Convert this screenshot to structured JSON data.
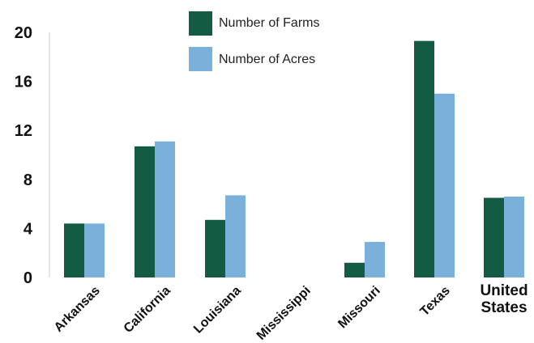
{
  "chart_data": {
    "type": "bar",
    "categories": [
      "Arkansas",
      "California",
      "Louisiana",
      "Mississippi",
      "Missouri",
      "Texas",
      "United States"
    ],
    "series": [
      {
        "name": "Number of Farms",
        "color": "#135c43",
        "values": [
          4.4,
          10.7,
          4.7,
          0,
          1.2,
          19.3,
          6.5
        ]
      },
      {
        "name": "Number of Acres",
        "color": "#7ab0d9",
        "values": [
          4.4,
          11.1,
          6.7,
          0,
          2.9,
          15.0,
          6.6
        ]
      }
    ],
    "yticks": [
      "0",
      "4",
      "8",
      "12",
      "16",
      "20"
    ],
    "ylim": [
      0,
      20
    ],
    "legend_position": "top-center",
    "grid": false,
    "title": "",
    "xlabel": "",
    "ylabel": ""
  }
}
